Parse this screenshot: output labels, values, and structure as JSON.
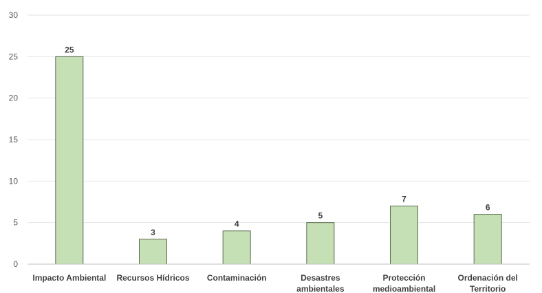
{
  "chart_data": {
    "type": "bar",
    "title": "",
    "xlabel": "",
    "ylabel": "",
    "categories": [
      [
        "Impacto Ambiental"
      ],
      [
        "Recursos Hídricos"
      ],
      [
        "Contaminación"
      ],
      [
        "Desastres",
        "ambientales"
      ],
      [
        "Protección",
        "medioambiental"
      ],
      [
        "Ordenación del",
        "Territorio"
      ]
    ],
    "values": [
      25,
      3,
      4,
      5,
      7,
      6
    ],
    "ylim": [
      0,
      30
    ],
    "yticks": [
      0,
      5,
      10,
      15,
      20,
      25,
      30
    ],
    "grid": true,
    "data_labels": true,
    "colors": {
      "bar_fill": "#c5e0b4",
      "bar_stroke": "#5a6b4f"
    }
  }
}
